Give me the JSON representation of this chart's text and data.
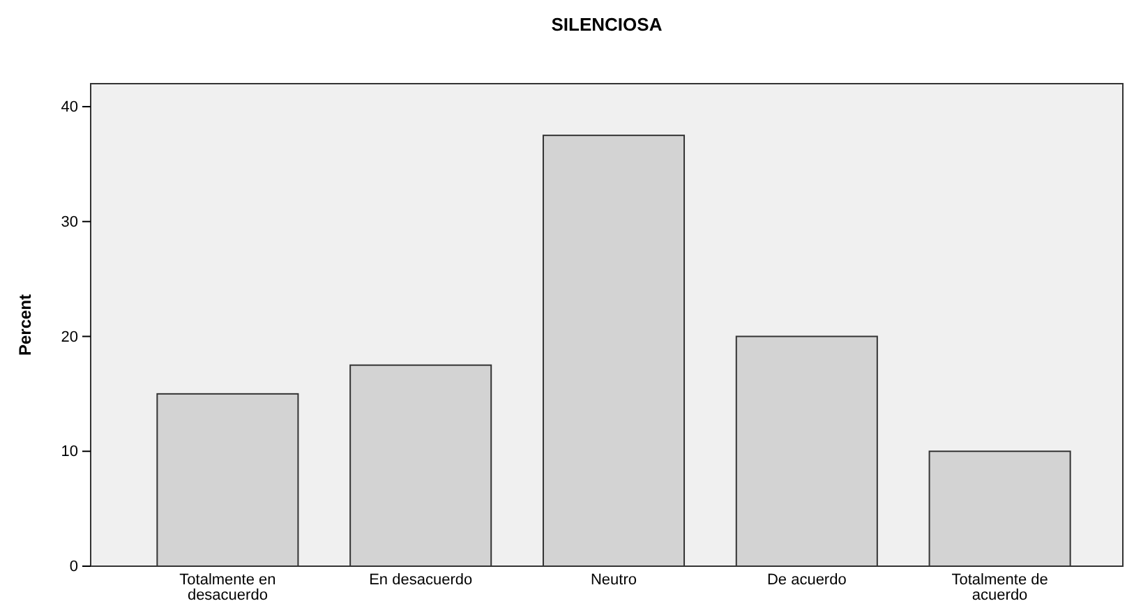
{
  "chart_data": {
    "type": "bar",
    "title": "SILENCIOSA",
    "ylabel": "Percent",
    "categories": [
      "Totalmente en desacuerdo",
      "En desacuerdo",
      "Neutro",
      "De acuerdo",
      "Totalmente de acuerdo"
    ],
    "values": [
      15,
      17.5,
      37.5,
      20,
      10
    ],
    "color": "#d3d3d3",
    "ylim": [
      0,
      42
    ],
    "yticks": [
      0,
      10,
      20,
      30,
      40
    ],
    "grid": false
  }
}
